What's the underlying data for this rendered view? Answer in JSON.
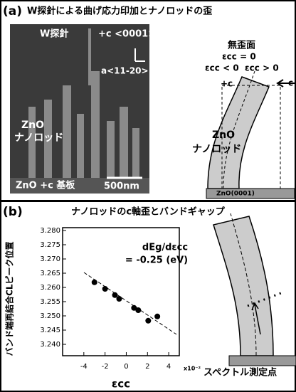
{
  "panel_a": {
    "label": "(a)",
    "title": "W探針による曲げ応力印加とナノロッドの歪",
    "sem": {
      "probe": "W探針",
      "c_axis": "+c <0001>",
      "a_axis": "a<11-20>",
      "rod_1": "ZnO",
      "rod_2": "ナノロッド",
      "substrate": "ZnO +c 基板",
      "scale_bar": "500nm"
    },
    "diagram": {
      "neutral_plane": "無歪面",
      "zero_strain": "εcc = 0",
      "compressive": "εcc < 0",
      "tensile": "εcc > 0",
      "c_direction": "+c",
      "rod_1": "ZnO",
      "rod_2": "ナノロッド",
      "substrate": "ZnO(0001)",
      "force": "c"
    }
  },
  "panel_b": {
    "label": "(b)",
    "diagram": {
      "measure_point": "スペクトル測定点"
    }
  },
  "chart_data": {
    "type": "scatter",
    "title": "ナノロッドのc軸歪とバンドギャップ",
    "x_label": "εcc",
    "x_multiplier": "x10⁻²",
    "y_label": "バンド端再結合CLピーク位置",
    "annotation": [
      "dEg/dεcc",
      "= -0.25 (eV)"
    ],
    "x": [
      -3.0,
      -2.0,
      -1.07,
      -0.67,
      0.73,
      1.13,
      2.07,
      2.93
    ],
    "values": [
      3.2618,
      3.2595,
      3.2573,
      3.256,
      3.2528,
      3.252,
      3.2483,
      3.2498
    ],
    "color": "#000000",
    "xlim": [
      -6,
      5
    ],
    "xticks": [
      -4,
      -2,
      0,
      2,
      4
    ],
    "ylim": [
      3.236,
      3.281
    ],
    "yticks": [
      {
        "value": 3.28,
        "label": "3.280"
      },
      3.275,
      {
        "value": 3.27,
        "label": "3.270"
      },
      3.265,
      {
        "value": 3.26,
        "label": "3.260"
      },
      3.255,
      {
        "value": 3.25,
        "label": "3.250"
      },
      3.245,
      {
        "value": 3.24,
        "label": "3.240"
      }
    ]
  }
}
